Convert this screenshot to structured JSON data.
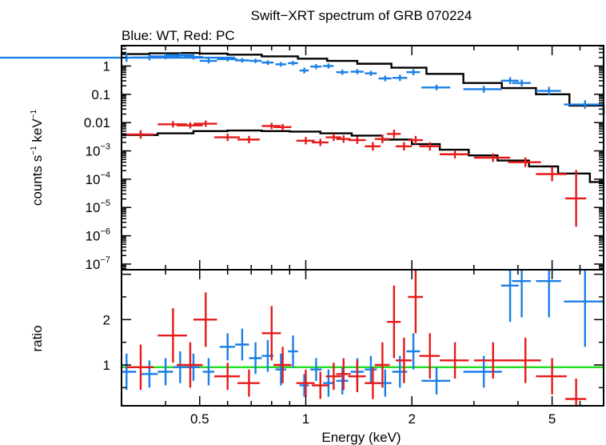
{
  "chart_data": {
    "type": "scatter",
    "title": "Swift−XRT spectrum of GRB 070224",
    "subtitle": "Blue: WT, Red: PC",
    "xlabel": "Energy (keV)",
    "x_scale": "log",
    "xlim": [
      0.3,
      7.0
    ],
    "x_ticks": [
      {
        "value": 0.5,
        "label": "0.5"
      },
      {
        "value": 1,
        "label": "1"
      },
      {
        "value": 2,
        "label": "2"
      },
      {
        "value": 5,
        "label": "5"
      }
    ],
    "colors": {
      "wt": "#1a7fe6",
      "pc": "#e61a1a",
      "model": "#000000",
      "unity": "#22dd22"
    },
    "spectrum": {
      "ylabel_main": "counts s",
      "ylabel_sup1": "−1",
      "ylabel_mid": " keV",
      "ylabel_sup2": "−1",
      "y_scale": "log",
      "ylim_exp": [
        -7.2,
        0.72
      ],
      "y_ticks": [
        {
          "exp": 0,
          "label": "1"
        },
        {
          "exp": -1,
          "label": "0.1"
        },
        {
          "exp": -2,
          "label": "0.01"
        },
        {
          "exp": -3,
          "base": "10",
          "sup": "−3"
        },
        {
          "exp": -4,
          "base": "10",
          "sup": "−4"
        },
        {
          "exp": -5,
          "base": "10",
          "sup": "−5"
        },
        {
          "exp": -6,
          "base": "10",
          "sup": "−6"
        },
        {
          "exp": -7,
          "base": "10",
          "sup": "−7"
        }
      ],
      "series": [
        {
          "key": "wt",
          "points": [
            [
              0.31,
              0.32,
              0.295,
              0.15
            ],
            [
              0.36,
              0.04,
              0.3,
              0.1
            ],
            [
              0.4,
              0.04,
              0.34,
              0.1
            ],
            [
              0.44,
              0.04,
              0.38,
              0.1
            ],
            [
              0.48,
              0.03,
              0.32,
              0.09
            ],
            [
              0.53,
              0.03,
              0.18,
              0.09
            ],
            [
              0.6,
              0.04,
              0.24,
              0.08
            ],
            [
              0.66,
              0.03,
              0.2,
              0.08
            ],
            [
              0.72,
              0.03,
              0.18,
              0.08
            ],
            [
              0.78,
              0.03,
              0.12,
              0.08
            ],
            [
              0.85,
              0.03,
              0.06,
              0.08
            ],
            [
              0.92,
              0.03,
              0.1,
              0.08
            ],
            [
              0.99,
              0.03,
              -0.16,
              0.1
            ],
            [
              1.07,
              0.04,
              -0.02,
              0.09
            ],
            [
              1.16,
              0.04,
              0.0,
              0.09
            ],
            [
              1.27,
              0.05,
              -0.22,
              0.09
            ],
            [
              1.4,
              0.06,
              -0.2,
              0.09
            ],
            [
              1.53,
              0.06,
              -0.26,
              0.09
            ],
            [
              1.68,
              0.07,
              -0.44,
              0.1
            ],
            [
              1.85,
              0.09,
              -0.42,
              0.11
            ],
            [
              2.02,
              0.09,
              -0.22,
              0.11
            ],
            [
              2.35,
              0.22,
              -0.76,
              0.1
            ],
            [
              3.2,
              0.4,
              -0.82,
              0.12
            ],
            [
              3.8,
              0.22,
              -0.52,
              0.12
            ],
            [
              4.1,
              0.25,
              -0.6,
              0.12
            ],
            [
              4.9,
              0.4,
              -0.88,
              0.14
            ],
            [
              6.2,
              0.8,
              -1.36,
              0.15
            ]
          ]
        },
        {
          "key": "pc",
          "points": [
            [
              0.34,
              0.03,
              -2.42,
              0.15
            ],
            [
              0.42,
              0.04,
              -2.06,
              0.11
            ],
            [
              0.47,
              0.04,
              -2.1,
              0.11
            ],
            [
              0.52,
              0.04,
              -2.04,
              0.11
            ],
            [
              0.6,
              0.05,
              -2.52,
              0.13
            ],
            [
              0.69,
              0.05,
              -2.6,
              0.13
            ],
            [
              0.8,
              0.05,
              -2.12,
              0.11
            ],
            [
              0.86,
              0.05,
              -2.16,
              0.11
            ],
            [
              1.0,
              0.06,
              -2.64,
              0.13
            ],
            [
              1.1,
              0.06,
              -2.7,
              0.13
            ],
            [
              1.2,
              0.06,
              -2.52,
              0.13
            ],
            [
              1.28,
              0.06,
              -2.58,
              0.13
            ],
            [
              1.4,
              0.08,
              -2.62,
              0.13
            ],
            [
              1.55,
              0.08,
              -2.84,
              0.15
            ],
            [
              1.65,
              0.08,
              -2.58,
              0.15
            ],
            [
              1.78,
              0.08,
              -2.4,
              0.15
            ],
            [
              1.9,
              0.1,
              -2.84,
              0.15
            ],
            [
              2.05,
              0.1,
              -2.62,
              0.15
            ],
            [
              2.25,
              0.15,
              -2.84,
              0.15
            ],
            [
              2.65,
              0.25,
              -3.12,
              0.15
            ],
            [
              3.4,
              0.4,
              -3.24,
              0.15
            ],
            [
              4.2,
              0.45,
              -3.4,
              0.17
            ],
            [
              5.0,
              0.5,
              -3.82,
              0.25
            ],
            [
              5.85,
              0.4,
              -4.68,
              1.0
            ]
          ]
        }
      ],
      "models": [
        {
          "key": "wt",
          "steps": [
            [
              0.3,
              0.42
            ],
            [
              0.36,
              0.45
            ],
            [
              0.44,
              0.46
            ],
            [
              0.5,
              0.44
            ],
            [
              0.6,
              0.4
            ],
            [
              0.75,
              0.34
            ],
            [
              0.95,
              0.26
            ],
            [
              1.15,
              0.18
            ],
            [
              1.4,
              0.08
            ],
            [
              1.75,
              -0.06
            ],
            [
              2.2,
              -0.28
            ],
            [
              2.8,
              -0.6
            ],
            [
              3.6,
              -0.78
            ],
            [
              4.5,
              -1.0
            ],
            [
              5.6,
              -1.4
            ],
            [
              7.0,
              -1.7
            ]
          ]
        },
        {
          "key": "pc",
          "steps": [
            [
              0.3,
              -2.44
            ],
            [
              0.38,
              -2.38
            ],
            [
              0.48,
              -2.3
            ],
            [
              0.6,
              -2.28
            ],
            [
              0.75,
              -2.3
            ],
            [
              0.9,
              -2.32
            ],
            [
              1.1,
              -2.38
            ],
            [
              1.35,
              -2.46
            ],
            [
              1.65,
              -2.6
            ],
            [
              2.0,
              -2.76
            ],
            [
              2.4,
              -2.96
            ],
            [
              2.9,
              -3.16
            ],
            [
              3.5,
              -3.34
            ],
            [
              4.3,
              -3.55
            ],
            [
              5.2,
              -3.8
            ],
            [
              6.4,
              -4.1
            ],
            [
              7.0,
              -4.1
            ]
          ]
        }
      ]
    },
    "ratio": {
      "ylabel": "ratio",
      "ylim": [
        0.1,
        3.1
      ],
      "y_ticks": [
        {
          "value": 1,
          "label": "1"
        },
        {
          "value": 2,
          "label": "2"
        }
      ],
      "unity_line": 0.95,
      "series": [
        {
          "key": "wt",
          "points": [
            [
              0.31,
              0.02,
              0.85,
              0.4
            ],
            [
              0.36,
              0.02,
              0.8,
              0.3
            ],
            [
              0.4,
              0.02,
              0.85,
              0.3
            ],
            [
              0.44,
              0.02,
              0.95,
              0.35
            ],
            [
              0.48,
              0.02,
              0.95,
              0.3
            ],
            [
              0.53,
              0.02,
              0.85,
              0.3
            ],
            [
              0.6,
              0.03,
              1.4,
              0.3
            ],
            [
              0.66,
              0.03,
              1.45,
              0.35
            ],
            [
              0.72,
              0.03,
              1.15,
              0.35
            ],
            [
              0.78,
              0.03,
              1.2,
              0.35
            ],
            [
              0.85,
              0.03,
              0.9,
              0.35
            ],
            [
              0.92,
              0.03,
              1.3,
              0.35
            ],
            [
              0.99,
              0.03,
              0.55,
              0.25
            ],
            [
              1.07,
              0.04,
              0.9,
              0.25
            ],
            [
              1.16,
              0.04,
              0.6,
              0.3
            ],
            [
              1.27,
              0.05,
              0.65,
              0.3
            ],
            [
              1.4,
              0.06,
              0.85,
              0.3
            ],
            [
              1.53,
              0.06,
              0.9,
              0.3
            ],
            [
              1.68,
              0.07,
              0.6,
              0.3
            ],
            [
              1.85,
              0.09,
              0.85,
              0.35
            ],
            [
              2.02,
              0.09,
              1.3,
              0.4
            ],
            [
              2.35,
              0.22,
              0.65,
              0.3
            ],
            [
              3.2,
              0.4,
              0.85,
              0.35
            ],
            [
              3.8,
              0.22,
              2.75,
              0.8
            ],
            [
              4.1,
              0.25,
              2.85,
              0.8
            ],
            [
              4.9,
              0.4,
              2.85,
              0.8
            ],
            [
              6.2,
              0.8,
              2.4,
              1.0
            ]
          ]
        },
        {
          "key": "pc",
          "points": [
            [
              0.34,
              0.03,
              0.95,
              0.5
            ],
            [
              0.42,
              0.04,
              1.65,
              0.6
            ],
            [
              0.47,
              0.04,
              1.0,
              0.5
            ],
            [
              0.52,
              0.04,
              2.0,
              0.6
            ],
            [
              0.6,
              0.05,
              0.75,
              0.3
            ],
            [
              0.69,
              0.05,
              0.6,
              0.3
            ],
            [
              0.8,
              0.05,
              1.7,
              0.6
            ],
            [
              0.86,
              0.05,
              1.0,
              0.4
            ],
            [
              1.0,
              0.06,
              0.6,
              0.3
            ],
            [
              1.1,
              0.06,
              0.55,
              0.3
            ],
            [
              1.2,
              0.06,
              0.75,
              0.3
            ],
            [
              1.28,
              0.06,
              0.8,
              0.35
            ],
            [
              1.4,
              0.08,
              0.75,
              0.35
            ],
            [
              1.55,
              0.08,
              0.6,
              0.35
            ],
            [
              1.65,
              0.08,
              1.0,
              0.5
            ],
            [
              1.78,
              0.08,
              1.95,
              0.8
            ],
            [
              1.9,
              0.1,
              1.1,
              0.5
            ],
            [
              2.05,
              0.1,
              2.5,
              0.8
            ],
            [
              2.25,
              0.15,
              1.2,
              0.5
            ],
            [
              2.65,
              0.25,
              1.1,
              0.4
            ],
            [
              3.4,
              0.4,
              1.1,
              0.4
            ],
            [
              4.2,
              0.45,
              1.1,
              0.5
            ],
            [
              5.0,
              0.5,
              0.75,
              0.4
            ],
            [
              5.85,
              0.4,
              0.25,
              0.45
            ]
          ]
        }
      ]
    }
  }
}
